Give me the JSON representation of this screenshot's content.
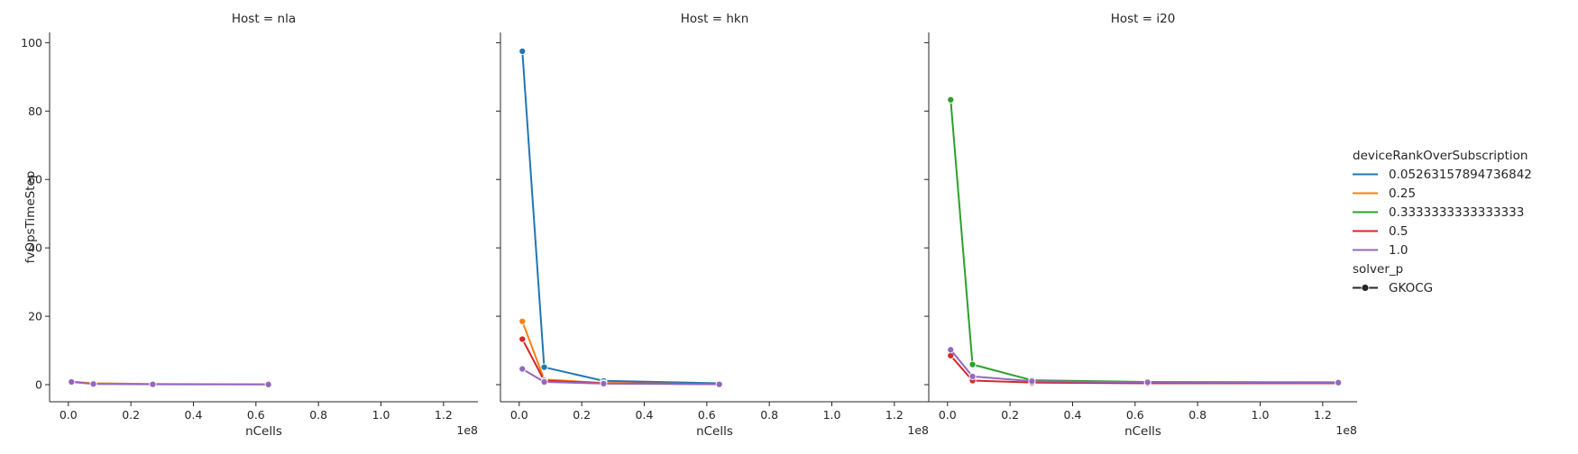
{
  "chart_data": {
    "type": "line",
    "xlabel": "nCells",
    "ylabel": "fvOpsTimeStep",
    "x_offset_label": "1e8",
    "xlim": [
      -0.06,
      1.31
    ],
    "ylim": [
      -5,
      103
    ],
    "x_ticks": [
      0.0,
      0.2,
      0.4,
      0.6,
      0.8,
      1.0,
      1.2
    ],
    "x_tick_labels": [
      "0.0",
      "0.2",
      "0.4",
      "0.6",
      "0.8",
      "1.0",
      "1.2"
    ],
    "y_ticks": [
      0,
      20,
      40,
      60,
      80,
      100
    ],
    "y_tick_labels": [
      "0",
      "20",
      "40",
      "60",
      "80",
      "100"
    ],
    "grid": false,
    "legend": {
      "placement": "right",
      "hue_title": "deviceRankOverSubscription",
      "hue_entries": [
        {
          "label": "0.05263157894736842",
          "color": "#1f77b4"
        },
        {
          "label": "0.25",
          "color": "#ff7f0e"
        },
        {
          "label": "0.3333333333333333",
          "color": "#2ca02c"
        },
        {
          "label": "0.5",
          "color": "#d62728"
        },
        {
          "label": "1.0",
          "color": "#9467bd"
        }
      ],
      "style_title": "solver_p",
      "style_entries": [
        {
          "label": "GKOCG",
          "marker": "circle"
        }
      ]
    },
    "panels": [
      {
        "title": "Host = nla",
        "series": [
          {
            "hue": "0.25",
            "color": "#ff7f0e",
            "x": [
              0.01,
              0.08,
              0.27,
              0.64
            ],
            "y": [
              0.9,
              0.4,
              0.2,
              0.1
            ]
          },
          {
            "hue": "1.0",
            "color": "#9467bd",
            "x": [
              0.01,
              0.08,
              0.27,
              0.64
            ],
            "y": [
              0.8,
              0.2,
              0.1,
              0.05
            ]
          }
        ]
      },
      {
        "title": "Host = hkn",
        "series": [
          {
            "hue": "0.05263157894736842",
            "color": "#1f77b4",
            "x": [
              0.01,
              0.08,
              0.27,
              0.64
            ],
            "y": [
              97.5,
              5.1,
              1.1,
              0.4
            ]
          },
          {
            "hue": "0.25",
            "color": "#ff7f0e",
            "x": [
              0.01,
              0.08,
              0.27,
              0.64
            ],
            "y": [
              18.5,
              1.5,
              0.5,
              0.2
            ]
          },
          {
            "hue": "0.5",
            "color": "#d62728",
            "x": [
              0.01,
              0.08,
              0.27,
              0.64
            ],
            "y": [
              13.3,
              1.2,
              0.4,
              0.2
            ]
          },
          {
            "hue": "1.0",
            "color": "#9467bd",
            "x": [
              0.01,
              0.08,
              0.27,
              0.64
            ],
            "y": [
              4.6,
              0.8,
              0.3,
              0.1
            ]
          }
        ]
      },
      {
        "title": "Host = i20",
        "series": [
          {
            "hue": "0.3333333333333333",
            "color": "#2ca02c",
            "x": [
              0.01,
              0.08,
              0.27,
              0.64,
              1.25
            ],
            "y": [
              83.3,
              5.9,
              1.3,
              0.8,
              0.7
            ]
          },
          {
            "hue": "0.5",
            "color": "#d62728",
            "x": [
              0.01,
              0.08,
              0.27,
              0.64,
              1.25
            ],
            "y": [
              8.5,
              1.2,
              0.6,
              0.4,
              0.4
            ]
          },
          {
            "hue": "1.0",
            "color": "#9467bd",
            "x": [
              0.01,
              0.08,
              0.27,
              0.64,
              1.25
            ],
            "y": [
              10.2,
              2.4,
              1.0,
              0.7,
              0.6
            ]
          }
        ]
      }
    ]
  }
}
